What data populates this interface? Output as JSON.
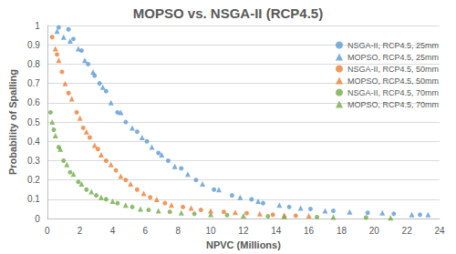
{
  "chart_data": {
    "type": "scatter",
    "title": "MOPSO vs. NSGA-II (RCP4.5)",
    "x_label": "NPVC (Millions)",
    "y_label": "Probability of Spalling",
    "xlim": [
      0,
      24
    ],
    "xticks": [
      0,
      2,
      4,
      6,
      8,
      10,
      12,
      14,
      16,
      18,
      20,
      22,
      24
    ],
    "ylim": [
      0,
      1
    ],
    "yticks": [
      0,
      0.1,
      0.2,
      0.3,
      0.4,
      0.5,
      0.6,
      0.7,
      0.8,
      0.9,
      1
    ],
    "grid": "y",
    "legend": "upper right",
    "series": [
      {
        "name": "NSGA-II, RCP4.5, 25mm",
        "color": "#5b9bd5",
        "marker": "circle",
        "x": [
          0.7,
          1.3,
          1.6,
          2.1,
          2.5,
          2.9,
          3.2,
          3.6,
          4.3,
          4.8,
          5.5,
          6.1,
          6.8,
          7.4,
          8.2,
          9.1,
          10.2,
          11.3,
          12.5,
          13.2,
          14.8,
          16.1,
          17.5,
          19.6,
          21.2,
          22.8
        ],
        "values": [
          0.99,
          0.98,
          0.93,
          0.87,
          0.8,
          0.74,
          0.7,
          0.66,
          0.55,
          0.5,
          0.45,
          0.4,
          0.34,
          0.3,
          0.26,
          0.2,
          0.15,
          0.12,
          0.1,
          0.08,
          0.06,
          0.05,
          0.04,
          0.03,
          0.025,
          0.02
        ]
      },
      {
        "name": "MOPSO, RCP4.5, 25mm",
        "color": "#5b9bd5",
        "marker": "triangle",
        "x": [
          0.6,
          1.0,
          1.4,
          1.9,
          2.3,
          2.8,
          3.4,
          3.9,
          4.5,
          5.2,
          5.8,
          6.4,
          7.0,
          7.8,
          8.6,
          9.5,
          10.5,
          11.8,
          12.9,
          14.2,
          15.5,
          17.0,
          18.5,
          20.5,
          22.3,
          23.3
        ],
        "values": [
          0.97,
          0.94,
          0.92,
          0.88,
          0.82,
          0.76,
          0.68,
          0.6,
          0.55,
          0.47,
          0.42,
          0.37,
          0.33,
          0.27,
          0.23,
          0.18,
          0.15,
          0.11,
          0.09,
          0.07,
          0.055,
          0.04,
          0.035,
          0.03,
          0.02,
          0.02
        ]
      },
      {
        "name": "NSGA-II, RCP4.5, 50mm",
        "color": "#ed7d31",
        "marker": "circle",
        "x": [
          0.3,
          0.6,
          0.9,
          1.3,
          1.8,
          2.2,
          2.6,
          3.1,
          3.6,
          4.2,
          4.8,
          5.5,
          6.3,
          7.2,
          8.3,
          9.4,
          10.8,
          12.2,
          13.8,
          15.2
        ],
        "values": [
          0.94,
          0.85,
          0.76,
          0.65,
          0.55,
          0.47,
          0.42,
          0.36,
          0.3,
          0.25,
          0.2,
          0.15,
          0.11,
          0.08,
          0.06,
          0.045,
          0.035,
          0.028,
          0.02,
          0.015
        ]
      },
      {
        "name": "MOPSO, RCP4.5, 50mm",
        "color": "#ed7d31",
        "marker": "triangle",
        "x": [
          0.5,
          0.7,
          1.1,
          1.5,
          2.0,
          2.4,
          2.9,
          3.3,
          3.9,
          4.5,
          5.1,
          5.9,
          6.7,
          7.6,
          8.8,
          10.0,
          11.5,
          13.0,
          14.5,
          16.0
        ],
        "values": [
          0.88,
          0.82,
          0.7,
          0.62,
          0.52,
          0.45,
          0.38,
          0.33,
          0.28,
          0.22,
          0.18,
          0.13,
          0.1,
          0.07,
          0.055,
          0.04,
          0.032,
          0.025,
          0.018,
          0.015
        ]
      },
      {
        "name": "NSGA-II, RCP4.5, 70mm",
        "color": "#70ad47",
        "marker": "circle",
        "x": [
          0.2,
          0.4,
          0.7,
          1.0,
          1.4,
          1.9,
          2.4,
          3.0,
          3.6,
          4.3,
          5.2,
          6.2,
          7.5,
          9.0,
          11.0,
          13.5,
          16.5,
          19.5
        ],
        "values": [
          0.55,
          0.46,
          0.37,
          0.3,
          0.24,
          0.19,
          0.15,
          0.12,
          0.1,
          0.08,
          0.06,
          0.045,
          0.035,
          0.025,
          0.018,
          0.012,
          0.008,
          0.005
        ]
      },
      {
        "name": "MOPSO, RCP4.5, 70mm",
        "color": "#70ad47",
        "marker": "triangle",
        "x": [
          0.3,
          0.5,
          0.8,
          1.2,
          1.6,
          2.1,
          2.7,
          3.3,
          4.0,
          4.8,
          5.7,
          6.8,
          8.2,
          10.0,
          12.0,
          14.5,
          17.5,
          21.0
        ],
        "values": [
          0.5,
          0.43,
          0.36,
          0.28,
          0.23,
          0.18,
          0.14,
          0.11,
          0.09,
          0.07,
          0.05,
          0.04,
          0.03,
          0.022,
          0.015,
          0.01,
          0.007,
          0.004
        ]
      }
    ]
  }
}
